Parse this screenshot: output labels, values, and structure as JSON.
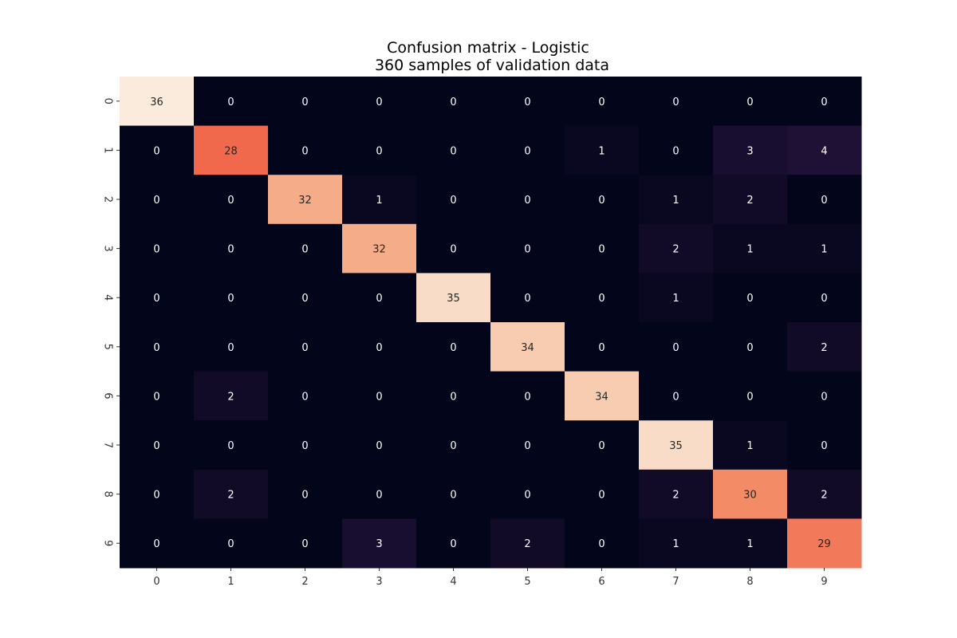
{
  "chart_data": {
    "type": "heatmap",
    "title_line1": "Confusion matrix - Logistic",
    "title_line2": "360 samples of validation data",
    "x_ticks": [
      "0",
      "1",
      "2",
      "3",
      "4",
      "5",
      "6",
      "7",
      "8",
      "9"
    ],
    "y_ticks": [
      "0",
      "1",
      "2",
      "3",
      "4",
      "5",
      "6",
      "7",
      "8",
      "9"
    ],
    "matrix": [
      [
        36,
        0,
        0,
        0,
        0,
        0,
        0,
        0,
        0,
        0
      ],
      [
        0,
        28,
        0,
        0,
        0,
        0,
        1,
        0,
        3,
        4
      ],
      [
        0,
        0,
        32,
        1,
        0,
        0,
        0,
        1,
        2,
        0
      ],
      [
        0,
        0,
        0,
        32,
        0,
        0,
        0,
        2,
        1,
        1
      ],
      [
        0,
        0,
        0,
        0,
        35,
        0,
        0,
        1,
        0,
        0
      ],
      [
        0,
        0,
        0,
        0,
        0,
        34,
        0,
        0,
        0,
        2
      ],
      [
        0,
        2,
        0,
        0,
        0,
        0,
        34,
        0,
        0,
        0
      ],
      [
        0,
        0,
        0,
        0,
        0,
        0,
        0,
        35,
        1,
        0
      ],
      [
        0,
        2,
        0,
        0,
        0,
        0,
        0,
        2,
        30,
        2
      ],
      [
        0,
        0,
        0,
        3,
        0,
        2,
        0,
        1,
        1,
        29
      ]
    ],
    "value_range": [
      0,
      36
    ],
    "colormap": "rocket",
    "grid": false,
    "colorbar": false
  }
}
